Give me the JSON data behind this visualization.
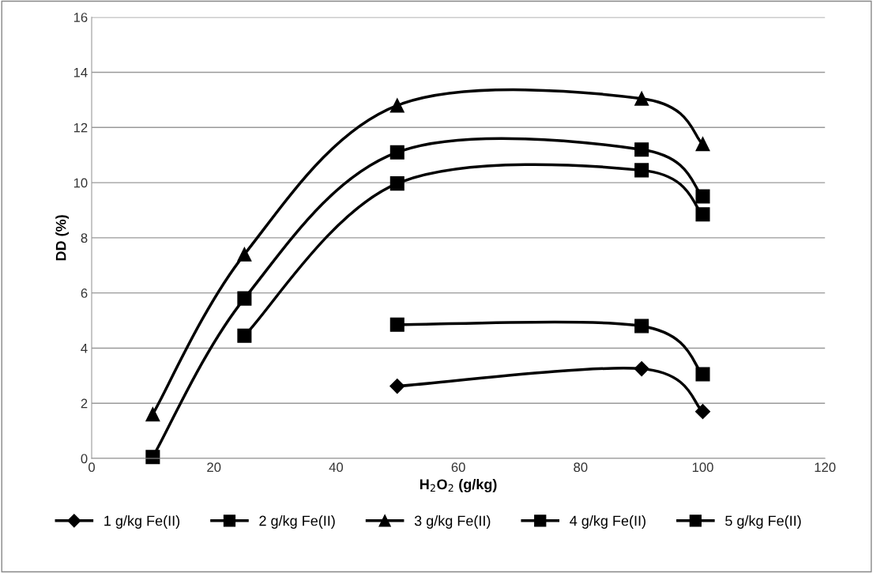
{
  "chart_data": {
    "type": "line",
    "xlabel": "H$_{2}$O$_{2}$ (g/kg)",
    "ylabel": "DD (%)",
    "x": [
      10,
      25,
      50,
      90,
      100
    ],
    "series": [
      {
        "name": "1 g/kg Fe(II)",
        "color": "#000000",
        "marker": "diamond",
        "values": [
          null,
          null,
          2.62,
          3.25,
          1.7
        ]
      },
      {
        "name": "2 g/kg Fe(II)",
        "color": "#000000",
        "marker": "square",
        "values": [
          null,
          null,
          4.85,
          4.8,
          3.05
        ]
      },
      {
        "name": "3 g/kg Fe(II)",
        "color": "#000000",
        "marker": "triangle",
        "values": [
          1.6,
          7.4,
          12.8,
          13.05,
          11.4
        ]
      },
      {
        "name": "4 g/kg Fe(II)",
        "color": "#000000",
        "marker": "square",
        "values": [
          null,
          4.45,
          9.97,
          10.45,
          8.85
        ]
      },
      {
        "name": "5 g/kg Fe(II)",
        "color": "#000000",
        "marker": "square",
        "values": [
          0.05,
          5.8,
          11.1,
          11.2,
          9.5
        ]
      }
    ],
    "xlim": [
      0,
      120
    ],
    "xticks": [
      0,
      20,
      40,
      60,
      80,
      100,
      120
    ],
    "ylim": [
      0,
      16
    ],
    "yticks": [
      0,
      2,
      4,
      6,
      8,
      10,
      12,
      14,
      16
    ],
    "grid": "y",
    "legend": "bottom",
    "line_style": "solid"
  }
}
